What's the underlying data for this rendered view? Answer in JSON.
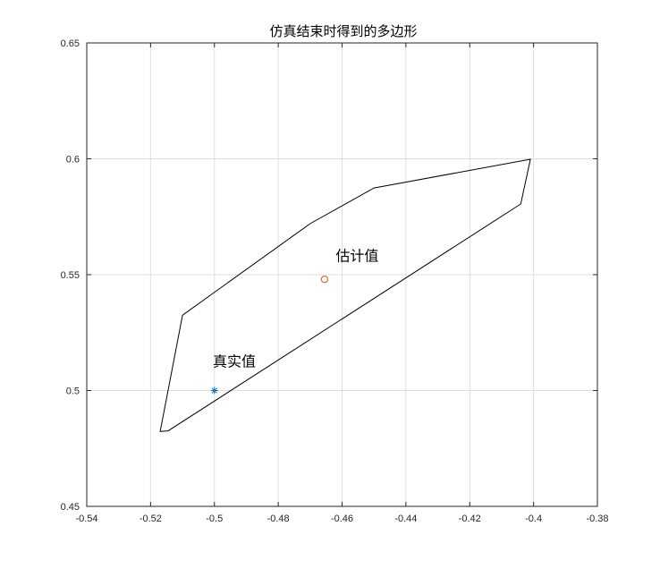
{
  "chart_data": {
    "type": "scatter",
    "title": "仿真结束时得到的多边形",
    "xlabel": "",
    "ylabel": "",
    "xlim": [
      -0.54,
      -0.38
    ],
    "ylim": [
      0.45,
      0.65
    ],
    "xticks": [
      -0.54,
      -0.52,
      -0.5,
      -0.48,
      -0.46,
      -0.44,
      -0.42,
      -0.4,
      -0.38
    ],
    "yticks": [
      0.45,
      0.5,
      0.55,
      0.6,
      0.65
    ],
    "xtick_labels": [
      "-0.54",
      "-0.52",
      "-0.5",
      "-0.48",
      "-0.46",
      "-0.44",
      "-0.42",
      "-0.4",
      "-0.38"
    ],
    "ytick_labels": [
      "0.45",
      "0.5",
      "0.55",
      "0.6",
      "0.65"
    ],
    "grid": true,
    "polygon": {
      "color": "#000000",
      "vertices": [
        [
          -0.517,
          0.4823
        ],
        [
          -0.5145,
          0.4826
        ],
        [
          -0.404,
          0.5805
        ],
        [
          -0.401,
          0.5998
        ],
        [
          -0.45,
          0.5874
        ],
        [
          -0.47,
          0.572
        ],
        [
          -0.51,
          0.5325
        ]
      ]
    },
    "points": [
      {
        "name": "真实值",
        "x": -0.5,
        "y": 0.5,
        "marker": "star",
        "color": "#0072BD"
      },
      {
        "name": "估计值",
        "x": -0.4655,
        "y": 0.548,
        "marker": "circle",
        "color": "#D95319"
      }
    ],
    "annotations": [
      {
        "text": "估计值",
        "x": -0.462,
        "y": 0.556
      },
      {
        "text": "真实值",
        "x": -0.5005,
        "y": 0.5105
      }
    ]
  }
}
